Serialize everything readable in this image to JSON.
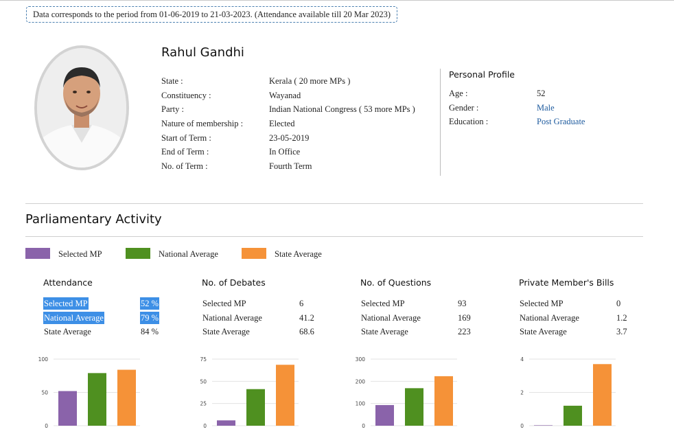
{
  "notice": "Data corresponds to the period from 01-06-2019 to 21-03-2023. (Attendance available till 20 Mar 2023)",
  "mp": {
    "name": "Rahul Gandhi",
    "details": [
      {
        "label": "State :",
        "value": "Kerala ( 20 more MPs )",
        "link": true
      },
      {
        "label": "Constituency :",
        "value": "Wayanad",
        "link": false
      },
      {
        "label": "Party :",
        "value": "Indian National Congress ( 53 more MPs )",
        "link": true
      },
      {
        "label": "Nature of membership :",
        "value": "Elected",
        "link": false
      },
      {
        "label": "Start of Term :",
        "value": "23-05-2019",
        "link": false
      },
      {
        "label": "End of Term :",
        "value": "In Office",
        "link": false
      },
      {
        "label": "No. of Term :",
        "value": "Fourth Term",
        "link": false
      }
    ]
  },
  "personal_profile": {
    "title": "Personal Profile",
    "rows": [
      {
        "label": "Age :",
        "value": "52",
        "link": false
      },
      {
        "label": "Gender :",
        "value": "Male",
        "link": true
      },
      {
        "label": "Education :",
        "value": "Post Graduate",
        "link": true
      }
    ]
  },
  "section_title": "Parliamentary Activity",
  "legend": [
    {
      "label": "Selected MP",
      "color": "#8a63aa"
    },
    {
      "label": "National Average",
      "color": "#4f9020"
    },
    {
      "label": "State Average",
      "color": "#f59238"
    }
  ],
  "metrics": [
    {
      "title": "Attendance",
      "rows": [
        {
          "label": "Selected MP",
          "value": "52 %",
          "highlighted": true
        },
        {
          "label": "National Average",
          "value": "79 %",
          "highlighted": true
        },
        {
          "label": "State Average",
          "value": "84 %",
          "highlighted": false
        }
      ]
    },
    {
      "title": "No. of Debates",
      "rows": [
        {
          "label": "Selected MP",
          "value": "6",
          "highlighted": false
        },
        {
          "label": "National Average",
          "value": "41.2",
          "highlighted": false
        },
        {
          "label": "State Average",
          "value": "68.6",
          "highlighted": false
        }
      ]
    },
    {
      "title": "No. of Questions",
      "rows": [
        {
          "label": "Selected MP",
          "value": "93",
          "highlighted": false
        },
        {
          "label": "National Average",
          "value": "169",
          "highlighted": false
        },
        {
          "label": "State Average",
          "value": "223",
          "highlighted": false
        }
      ]
    },
    {
      "title": "Private Member's Bills",
      "rows": [
        {
          "label": "Selected MP",
          "value": "0",
          "highlighted": false
        },
        {
          "label": "National Average",
          "value": "1.2",
          "highlighted": false
        },
        {
          "label": "State Average",
          "value": "3.7",
          "highlighted": false
        }
      ]
    }
  ],
  "chart_data": [
    {
      "type": "bar",
      "categories": [
        "Selected MP",
        "National Average",
        "State Average"
      ],
      "values": [
        52,
        79,
        84
      ],
      "ylim": [
        0,
        100
      ],
      "yticks": [
        0,
        50,
        100
      ],
      "colors": [
        "#8a63aa",
        "#4f9020",
        "#f59238"
      ],
      "grid": true
    },
    {
      "type": "bar",
      "categories": [
        "Selected MP",
        "National Average",
        "State Average"
      ],
      "values": [
        6,
        41.2,
        68.6
      ],
      "ylim": [
        0,
        75
      ],
      "yticks": [
        0,
        25,
        50,
        75
      ],
      "colors": [
        "#8a63aa",
        "#4f9020",
        "#f59238"
      ],
      "grid": true
    },
    {
      "type": "bar",
      "categories": [
        "Selected MP",
        "National Average",
        "State Average"
      ],
      "values": [
        93,
        169,
        223
      ],
      "ylim": [
        0,
        300
      ],
      "yticks": [
        0,
        100,
        200,
        300
      ],
      "colors": [
        "#8a63aa",
        "#4f9020",
        "#f59238"
      ],
      "grid": true
    },
    {
      "type": "bar",
      "categories": [
        "Selected MP",
        "National Average",
        "State Average"
      ],
      "values": [
        0,
        1.2,
        3.7
      ],
      "ylim": [
        0,
        4
      ],
      "yticks": [
        0,
        2,
        4
      ],
      "colors": [
        "#8a63aa",
        "#4f9020",
        "#f59238"
      ],
      "grid": true
    }
  ]
}
